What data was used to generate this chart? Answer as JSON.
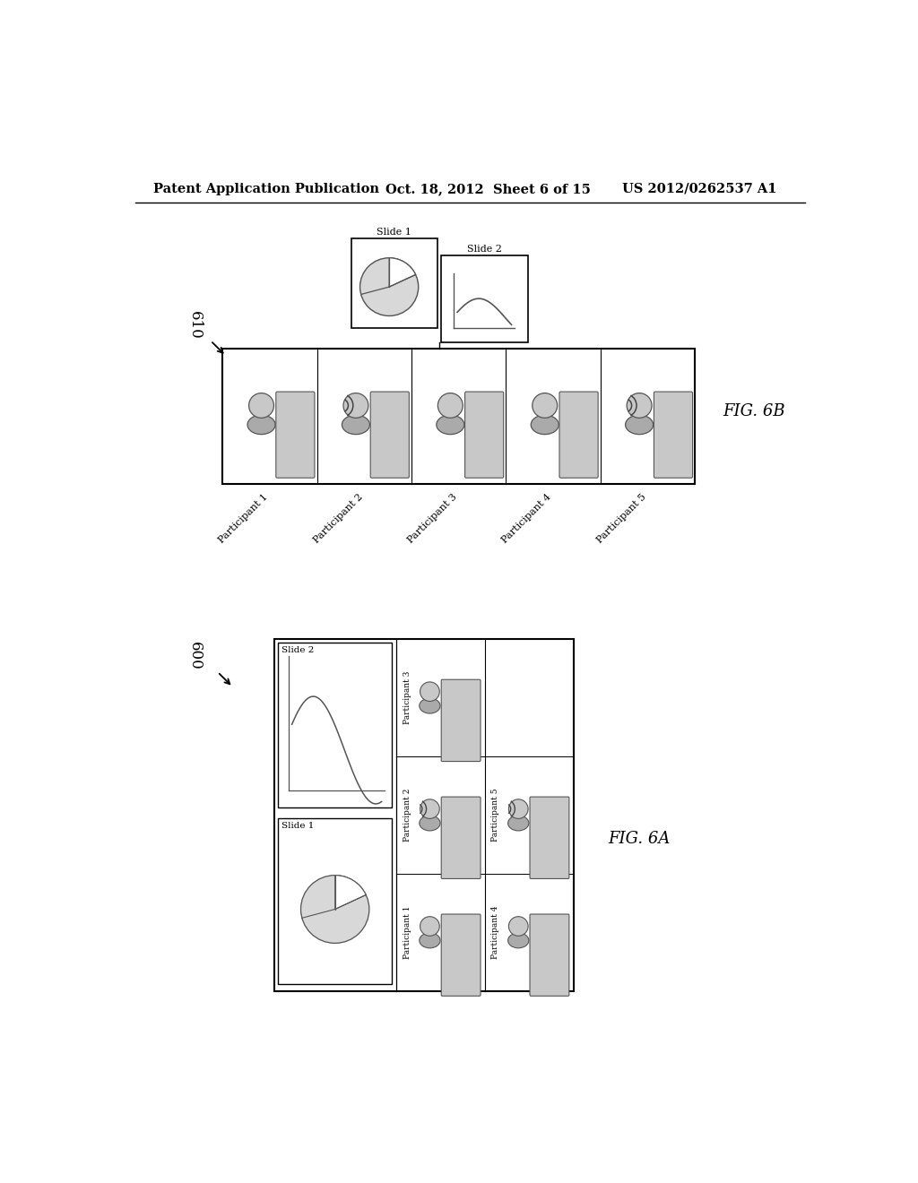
{
  "bg_color": "#ffffff",
  "header_left": "Patent Application Publication",
  "header_mid": "Oct. 18, 2012  Sheet 6 of 15",
  "header_right": "US 2012/0262537 A1",
  "fig6b_label": "610",
  "fig6a_label": "600",
  "fig6b_caption": "FIG. 6B",
  "fig6a_caption": "FIG. 6A",
  "slide1_label": "Slide 1",
  "slide2_label": "Slide 2",
  "participants_6b": [
    "Participant 1",
    "Participant 2",
    "Participant 3",
    "Participant 4",
    "Participant 5"
  ],
  "participants_6a": [
    "Participant 1",
    "Participant 2",
    "Participant 3",
    "Participant 4",
    "Participant 5"
  ],
  "gray_light": "#c8c8c8",
  "gray_mid": "#aaaaaa",
  "gray_dark": "#888888"
}
